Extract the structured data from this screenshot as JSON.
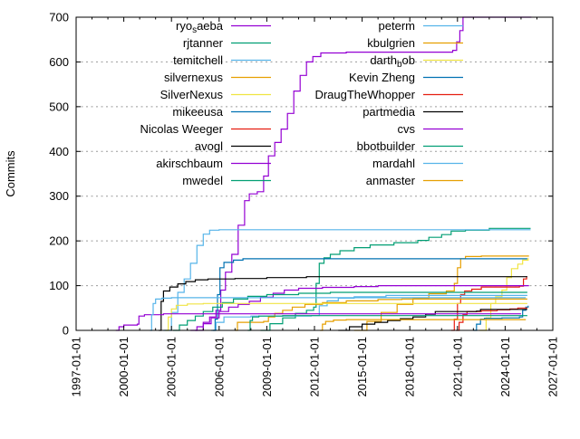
{
  "chart_data": {
    "type": "line",
    "title": "",
    "xlabel": "",
    "ylabel": "Commits",
    "x_domain": [
      1997.0,
      2027.0
    ],
    "y_domain": [
      0,
      700
    ],
    "grid": "horizontal-dashed",
    "grid_color": "#9a9a9a",
    "border_color": "#000000",
    "legend_position": "top-inside-two-columns",
    "x_ticks": [
      {
        "value": 1997.0,
        "label": "1997-01-01"
      },
      {
        "value": 2000.0,
        "label": "2000-01-01"
      },
      {
        "value": 2003.0,
        "label": "2003-01-01"
      },
      {
        "value": 2006.0,
        "label": "2006-01-01"
      },
      {
        "value": 2009.0,
        "label": "2009-01-01"
      },
      {
        "value": 2012.0,
        "label": "2012-01-01"
      },
      {
        "value": 2015.0,
        "label": "2015-01-01"
      },
      {
        "value": 2018.0,
        "label": "2018-01-01"
      },
      {
        "value": 2021.0,
        "label": "2021-01-01"
      },
      {
        "value": 2024.0,
        "label": "2024-01-01"
      },
      {
        "value": 2027.0,
        "label": "2027-01-01"
      }
    ],
    "y_ticks": [
      0,
      100,
      200,
      300,
      400,
      500,
      600,
      700
    ],
    "series": [
      {
        "name": "ryo_saeba",
        "color": "#9400d3",
        "points": [
          [
            2004.2,
            0
          ],
          [
            2004.6,
            8
          ],
          [
            2005.0,
            18
          ],
          [
            2005.4,
            30
          ],
          [
            2005.8,
            45
          ],
          [
            2006.1,
            90
          ],
          [
            2006.4,
            130
          ],
          [
            2006.8,
            170
          ],
          [
            2007.2,
            235
          ],
          [
            2007.6,
            290
          ],
          [
            2007.9,
            305
          ],
          [
            2008.4,
            310
          ],
          [
            2008.8,
            345
          ],
          [
            2009.1,
            390
          ],
          [
            2009.5,
            420
          ],
          [
            2009.9,
            450
          ],
          [
            2010.3,
            485
          ],
          [
            2010.7,
            535
          ],
          [
            2011.1,
            570
          ],
          [
            2011.5,
            600
          ],
          [
            2011.9,
            612
          ],
          [
            2012.4,
            620
          ],
          [
            2014.0,
            622
          ],
          [
            2020.7,
            626
          ],
          [
            2020.95,
            645
          ],
          [
            2021.15,
            670
          ],
          [
            2021.35,
            700
          ],
          [
            2025.65,
            700
          ]
        ]
      },
      {
        "name": "rjtanner",
        "color": "#009e73",
        "points": [
          [
            2008.6,
            0
          ],
          [
            2009.2,
            15
          ],
          [
            2010.0,
            28
          ],
          [
            2010.8,
            38
          ],
          [
            2011.5,
            45
          ],
          [
            2011.95,
            52
          ],
          [
            2012.1,
            105
          ],
          [
            2012.3,
            150
          ],
          [
            2012.6,
            162
          ],
          [
            2013.0,
            170
          ],
          [
            2013.6,
            178
          ],
          [
            2014.5,
            185
          ],
          [
            2015.5,
            191
          ],
          [
            2017.0,
            196
          ],
          [
            2018.5,
            201
          ],
          [
            2019.2,
            208
          ],
          [
            2020.0,
            214
          ],
          [
            2020.6,
            222
          ],
          [
            2021.5,
            224
          ],
          [
            2023.0,
            228
          ],
          [
            2025.6,
            228
          ]
        ]
      },
      {
        "name": "temitchell",
        "color": "#56b4e9",
        "points": [
          [
            2002.5,
            0
          ],
          [
            2003.0,
            40
          ],
          [
            2003.4,
            85
          ],
          [
            2003.8,
            115
          ],
          [
            2004.2,
            150
          ],
          [
            2004.6,
            190
          ],
          [
            2005.0,
            215
          ],
          [
            2005.4,
            224
          ],
          [
            2006.0,
            225
          ],
          [
            2025.6,
            225
          ]
        ]
      },
      {
        "name": "silvernexus",
        "color": "#e69f00",
        "points": [
          [
            2014.5,
            0
          ],
          [
            2015.3,
            20
          ],
          [
            2016.2,
            40
          ],
          [
            2017.2,
            58
          ],
          [
            2018.2,
            72
          ],
          [
            2019.2,
            82
          ],
          [
            2020.3,
            88
          ],
          [
            2020.8,
            105
          ],
          [
            2021.0,
            140
          ],
          [
            2021.2,
            160
          ],
          [
            2021.5,
            165
          ],
          [
            2022.5,
            166
          ],
          [
            2025.5,
            166
          ]
        ]
      },
      {
        "name": "SilverNexus",
        "color": "#f0e442",
        "points": [
          [
            2022.4,
            0
          ],
          [
            2022.8,
            28
          ],
          [
            2023.1,
            60
          ],
          [
            2023.4,
            75
          ],
          [
            2023.8,
            90
          ],
          [
            2024.1,
            118
          ],
          [
            2024.4,
            138
          ],
          [
            2024.8,
            148
          ],
          [
            2025.1,
            157
          ],
          [
            2025.45,
            162
          ]
        ]
      },
      {
        "name": "mikeeusa",
        "color": "#0072b2",
        "points": [
          [
            2005.6,
            0
          ],
          [
            2005.75,
            25
          ],
          [
            2005.9,
            80
          ],
          [
            2006.05,
            140
          ],
          [
            2006.3,
            152
          ],
          [
            2006.9,
            157
          ],
          [
            2007.5,
            160
          ],
          [
            2025.4,
            160
          ]
        ]
      },
      {
        "name": "Nicolas Weeger",
        "color": "#e51e10",
        "points": [
          [
            2020.6,
            0
          ],
          [
            2020.8,
            25
          ],
          [
            2021.0,
            60
          ],
          [
            2021.2,
            80
          ],
          [
            2021.45,
            88
          ],
          [
            2021.9,
            92
          ],
          [
            2022.5,
            97
          ],
          [
            2024.9,
            99
          ],
          [
            2025.15,
            115
          ],
          [
            2025.35,
            121
          ]
        ]
      },
      {
        "name": "avogl",
        "color": "#000000",
        "points": [
          [
            2002.2,
            0
          ],
          [
            2002.35,
            65
          ],
          [
            2002.5,
            88
          ],
          [
            2002.9,
            97
          ],
          [
            2003.4,
            104
          ],
          [
            2003.9,
            109
          ],
          [
            2004.5,
            113
          ],
          [
            2005.3,
            115
          ],
          [
            2007.0,
            116
          ],
          [
            2009.0,
            118
          ],
          [
            2011.5,
            120
          ],
          [
            2025.4,
            120
          ]
        ]
      },
      {
        "name": "akirschbaum",
        "color": "#9400d3",
        "points": [
          [
            2004.5,
            0
          ],
          [
            2005.0,
            15
          ],
          [
            2005.5,
            28
          ],
          [
            2006.0,
            42
          ],
          [
            2006.6,
            52
          ],
          [
            2007.2,
            58
          ],
          [
            2007.9,
            65
          ],
          [
            2008.6,
            74
          ],
          [
            2009.4,
            83
          ],
          [
            2010.1,
            90
          ],
          [
            2011.0,
            94
          ],
          [
            2012.5,
            96
          ],
          [
            2014.5,
            98
          ],
          [
            2016.0,
            100
          ],
          [
            2025.5,
            100
          ]
        ]
      },
      {
        "name": "mwedel",
        "color": "#009e73",
        "points": [
          [
            2003.1,
            0
          ],
          [
            2003.5,
            12
          ],
          [
            2004.0,
            22
          ],
          [
            2004.5,
            32
          ],
          [
            2005.0,
            42
          ],
          [
            2005.6,
            52
          ],
          [
            2006.2,
            62
          ],
          [
            2006.9,
            70
          ],
          [
            2007.8,
            76
          ],
          [
            2009.0,
            80
          ],
          [
            2011.0,
            83
          ],
          [
            2013.0,
            85
          ],
          [
            2025.4,
            85
          ]
        ]
      },
      {
        "name": "peterm",
        "color": "#56b4e9",
        "points": [
          [
            2005.5,
            0
          ],
          [
            2005.8,
            18
          ],
          [
            2006.3,
            30
          ],
          [
            2008.0,
            32
          ],
          [
            2011.8,
            33
          ],
          [
            2012.3,
            55
          ],
          [
            2012.8,
            66
          ],
          [
            2013.5,
            72
          ],
          [
            2014.5,
            75
          ],
          [
            2016.5,
            78
          ],
          [
            2025.4,
            78
          ]
        ]
      },
      {
        "name": "kbulgrien",
        "color": "#e69f00",
        "points": [
          [
            2007.0,
            0
          ],
          [
            2007.15,
            18
          ],
          [
            2008.8,
            20
          ],
          [
            2009.1,
            30
          ],
          [
            2009.5,
            38
          ],
          [
            2010.0,
            45
          ],
          [
            2010.6,
            52
          ],
          [
            2011.4,
            58
          ],
          [
            2012.5,
            62
          ],
          [
            2014.0,
            66
          ],
          [
            2016.0,
            69
          ],
          [
            2017.5,
            70
          ],
          [
            2025.4,
            70
          ]
        ]
      },
      {
        "name": "darth_bob",
        "color": "#f0e442",
        "points": [
          [
            2002.6,
            0
          ],
          [
            2002.8,
            30
          ],
          [
            2003.0,
            48
          ],
          [
            2003.3,
            56
          ],
          [
            2004.0,
            59
          ],
          [
            2005.0,
            60
          ],
          [
            2025.4,
            60
          ]
        ]
      },
      {
        "name": "Kevin Zheng",
        "color": "#0072b2",
        "points": [
          [
            2022.0,
            0
          ],
          [
            2022.2,
            14
          ],
          [
            2022.45,
            25
          ],
          [
            2022.7,
            27
          ],
          [
            2023.8,
            28
          ],
          [
            2024.9,
            30
          ],
          [
            2025.1,
            45
          ],
          [
            2025.3,
            52
          ],
          [
            2025.45,
            55
          ]
        ]
      },
      {
        "name": "DraugTheWhopper",
        "color": "#e51e10",
        "points": [
          [
            2020.9,
            0
          ],
          [
            2021.1,
            18
          ],
          [
            2021.35,
            35
          ],
          [
            2021.6,
            42
          ],
          [
            2022.5,
            44
          ],
          [
            2023.5,
            46
          ],
          [
            2024.3,
            48
          ],
          [
            2024.8,
            50
          ],
          [
            2025.4,
            50
          ]
        ]
      },
      {
        "name": "partmedia",
        "color": "#000000",
        "points": [
          [
            2013.5,
            0
          ],
          [
            2014.2,
            8
          ],
          [
            2015.0,
            14
          ],
          [
            2015.8,
            18
          ],
          [
            2016.6,
            22
          ],
          [
            2017.4,
            26
          ],
          [
            2018.2,
            30
          ],
          [
            2019.0,
            36
          ],
          [
            2019.6,
            42
          ],
          [
            2022.2,
            43
          ],
          [
            2022.45,
            47
          ],
          [
            2025.4,
            47
          ]
        ]
      },
      {
        "name": "cvs",
        "color": "#9400d3",
        "points": [
          [
            1999.5,
            0
          ],
          [
            1999.7,
            8
          ],
          [
            2000.0,
            12
          ],
          [
            2000.85,
            14
          ],
          [
            2000.95,
            32
          ],
          [
            2001.3,
            35
          ],
          [
            2002.5,
            37
          ],
          [
            2025.0,
            37
          ]
        ]
      },
      {
        "name": "bbotbuilder",
        "color": "#009e73",
        "points": [
          [
            2007.8,
            0
          ],
          [
            2007.95,
            22
          ],
          [
            2008.1,
            30
          ],
          [
            2008.5,
            32
          ],
          [
            2010.0,
            33
          ],
          [
            2025.4,
            33
          ]
        ]
      },
      {
        "name": "mardahl",
        "color": "#56b4e9",
        "points": [
          [
            2001.65,
            0
          ],
          [
            2001.75,
            35
          ],
          [
            2001.85,
            60
          ],
          [
            2002.0,
            70
          ],
          [
            2002.4,
            72
          ],
          [
            2003.0,
            73
          ],
          [
            2025.3,
            73
          ]
        ]
      },
      {
        "name": "anmaster",
        "color": "#e69f00",
        "points": [
          [
            2012.35,
            0
          ],
          [
            2012.5,
            14
          ],
          [
            2012.7,
            20
          ],
          [
            2013.2,
            23
          ],
          [
            2014.0,
            24
          ],
          [
            2025.3,
            24
          ]
        ]
      }
    ]
  }
}
